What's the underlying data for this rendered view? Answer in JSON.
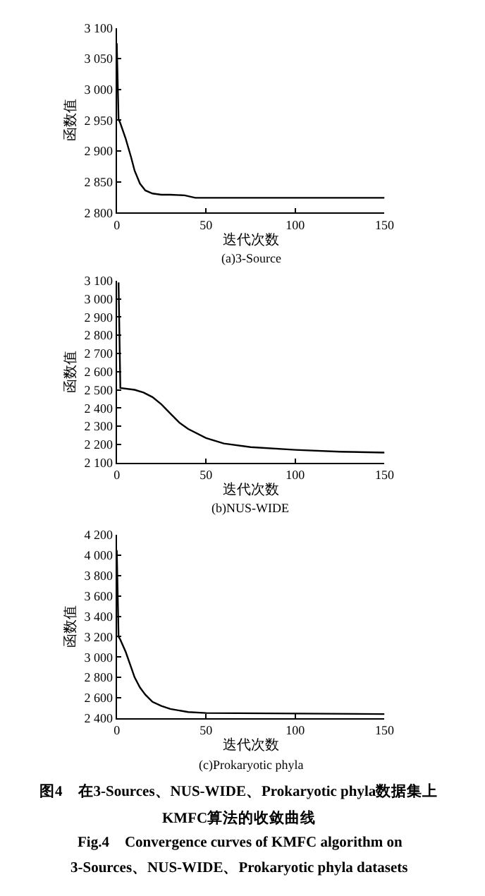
{
  "chart_data": [
    {
      "type": "line",
      "title": "(a)3-Source",
      "xlabel": "迭代次数",
      "ylabel": "函数值",
      "xlim": [
        0,
        150
      ],
      "xticks": [
        0,
        50,
        100,
        150
      ],
      "ylim": [
        2800,
        3100
      ],
      "yticks": [
        {
          "value": 2800,
          "label": "2 800"
        },
        {
          "value": 2850,
          "label": "2 850"
        },
        {
          "value": 2900,
          "label": "2 900"
        },
        {
          "value": 2950,
          "label": "2 950"
        },
        {
          "value": 3000,
          "label": "3 000"
        },
        {
          "value": 3050,
          "label": "3 050"
        },
        {
          "value": 3100,
          "label": "3 100"
        }
      ],
      "series": [
        {
          "color": "#000000",
          "x": [
            0,
            1,
            2,
            5,
            8,
            10,
            13,
            16,
            20,
            25,
            30,
            38,
            44,
            150
          ],
          "values": [
            3075,
            2952,
            2945,
            2920,
            2890,
            2868,
            2847,
            2836,
            2831,
            2829,
            2829,
            2828,
            2824,
            2824
          ]
        }
      ]
    },
    {
      "type": "line",
      "title": "(b)NUS-WIDE",
      "xlabel": "迭代次数",
      "ylabel": "函数值",
      "xlim": [
        0,
        150
      ],
      "xticks": [
        0,
        50,
        100,
        150
      ],
      "ylim": [
        2100,
        3100
      ],
      "yticks": [
        {
          "value": 2100,
          "label": "2 100"
        },
        {
          "value": 2200,
          "label": "2 200"
        },
        {
          "value": 2300,
          "label": "2 300"
        },
        {
          "value": 2400,
          "label": "2 400"
        },
        {
          "value": 2500,
          "label": "2 500"
        },
        {
          "value": 2600,
          "label": "2 600"
        },
        {
          "value": 2700,
          "label": "2 700"
        },
        {
          "value": 2800,
          "label": "2 800"
        },
        {
          "value": 2900,
          "label": "2 900"
        },
        {
          "value": 3000,
          "label": "3 000"
        },
        {
          "value": 3100,
          "label": "3 100"
        }
      ],
      "series": [
        {
          "color": "#000000",
          "x": [
            1,
            2,
            10,
            15,
            20,
            25,
            30,
            35,
            40,
            50,
            60,
            75,
            100,
            125,
            150
          ],
          "values": [
            3090,
            2510,
            2500,
            2485,
            2460,
            2420,
            2370,
            2320,
            2285,
            2235,
            2205,
            2185,
            2170,
            2160,
            2155
          ]
        }
      ]
    },
    {
      "type": "line",
      "title": "(c)Prokaryotic phyla",
      "xlabel": "迭代次数",
      "ylabel": "函数值",
      "xlim": [
        0,
        150
      ],
      "xticks": [
        0,
        50,
        100,
        150
      ],
      "ylim": [
        2400,
        4200
      ],
      "yticks": [
        {
          "value": 2400,
          "label": "2 400"
        },
        {
          "value": 2600,
          "label": "2 600"
        },
        {
          "value": 2800,
          "label": "2 800"
        },
        {
          "value": 3000,
          "label": "3 000"
        },
        {
          "value": 3200,
          "label": "3 200"
        },
        {
          "value": 3400,
          "label": "3 400"
        },
        {
          "value": 3600,
          "label": "3 600"
        },
        {
          "value": 3800,
          "label": "3 800"
        },
        {
          "value": 4000,
          "label": "4 000"
        },
        {
          "value": 4200,
          "label": "4 200"
        }
      ],
      "annotations": [
        "图4　在3-Sources、NUS-WIDE、Prokaryotic phyla数据集上",
        "KMFC算法的收敛曲线",
        "Fig.4　Convergence curves of KMFC algorithm on",
        "3-Sources、NUS-WIDE、Prokaryotic phyla datasets"
      ],
      "series": [
        {
          "color": "#000000",
          "x": [
            0,
            1,
            2,
            5,
            8,
            10,
            13,
            16,
            20,
            25,
            30,
            40,
            50,
            150
          ],
          "values": [
            4050,
            3200,
            3170,
            3050,
            2900,
            2800,
            2700,
            2630,
            2560,
            2520,
            2490,
            2460,
            2450,
            2440
          ]
        }
      ]
    }
  ]
}
